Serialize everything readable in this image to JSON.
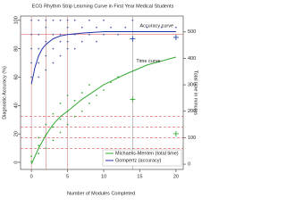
{
  "chart_data": {
    "type": "scatter",
    "title": "ECG Rhythm Strip Learning Curve in First Year Medical Students",
    "x_label": "Number of Modules Completed",
    "y_label": "Diagnostic Accuracy (%)",
    "y2_label": "Total time in minutes",
    "xlim": [
      -1.5,
      21
    ],
    "xticks": [
      0,
      5,
      10,
      15,
      20
    ],
    "ylim": [
      -5,
      103
    ],
    "yticks": [
      0,
      20,
      40,
      60,
      80,
      100
    ],
    "y2lim": [
      -20,
      560
    ],
    "y2ticks": [
      0,
      100,
      200,
      300,
      400,
      500
    ],
    "legend": "bottom-right",
    "hlines": [
      {
        "value": 90,
        "axis": "y",
        "color": "#e07070",
        "dash": false
      },
      {
        "value": 180,
        "axis": "y2",
        "color": "#e05050",
        "dash": true
      },
      {
        "value": 140,
        "axis": "y2",
        "color": "#e05050",
        "dash": true
      },
      {
        "value": 100,
        "axis": "y2",
        "color": "#e05050",
        "dash": true
      },
      {
        "value": 60,
        "axis": "y2",
        "color": "#e05050",
        "dash": true
      }
    ],
    "vlines": [
      {
        "value": 0,
        "color": "#d08080"
      },
      {
        "value": 2,
        "color": "#d08080"
      },
      {
        "value": 5,
        "color": "#d08080"
      },
      {
        "value": 14,
        "color": "#999999"
      }
    ],
    "series": [
      {
        "color": "#5566aa",
        "marker": "dot",
        "axis": "y",
        "x": [
          0,
          0,
          0,
          0,
          0,
          1,
          1,
          1,
          1,
          1,
          2,
          2,
          2,
          2,
          2,
          3,
          3,
          3,
          3,
          4,
          4,
          4,
          4,
          5,
          5,
          5,
          5,
          6,
          6,
          6,
          7,
          7,
          8,
          8,
          9,
          9,
          10,
          10,
          11,
          12,
          13,
          14,
          16,
          18,
          20
        ],
        "values": [
          100,
          90,
          80,
          70,
          60,
          100,
          90,
          80,
          70,
          60,
          100,
          95,
          85,
          75,
          65,
          100,
          90,
          80,
          70,
          100,
          90,
          85,
          75,
          100,
          95,
          85,
          80,
          100,
          90,
          80,
          95,
          85,
          100,
          90,
          95,
          85,
          100,
          90,
          95,
          90,
          95,
          100,
          95,
          95,
          95
        ]
      },
      {
        "color": "#44aa44",
        "marker": "dot",
        "axis": "y2",
        "x": [
          0,
          0,
          1,
          1,
          1,
          2,
          2,
          2,
          3,
          3,
          3,
          4,
          4,
          4,
          5,
          5,
          5,
          6,
          6,
          7,
          7,
          8,
          8,
          9,
          10,
          11,
          12
        ],
        "values": [
          10,
          30,
          40,
          70,
          100,
          60,
          110,
          150,
          90,
          140,
          190,
          120,
          170,
          230,
          150,
          200,
          260,
          180,
          240,
          200,
          270,
          230,
          300,
          260,
          280,
          310,
          330
        ]
      },
      {
        "color": "#2244aa",
        "marker": "plus",
        "axis": "y",
        "x": [
          14,
          20
        ],
        "values": [
          87,
          88
        ]
      },
      {
        "color": "#33aa33",
        "marker": "plus",
        "axis": "y2",
        "x": [
          14,
          20
        ],
        "values": [
          245,
          115
        ]
      },
      {
        "name": "Michaelis-Menten (total time)",
        "color": "#33aa33",
        "marker": "line",
        "axis": "y2",
        "x": [
          0,
          1,
          2,
          3,
          4,
          5,
          7,
          10,
          13,
          16,
          20
        ],
        "values": [
          0,
          60,
          110,
          150,
          180,
          200,
          245,
          300,
          340,
          375,
          405
        ]
      },
      {
        "name": "Gompertz (accuracy)",
        "color": "#2233aa",
        "marker": "line",
        "axis": "y",
        "x": [
          0,
          0.5,
          1,
          1.5,
          2,
          3,
          4,
          5,
          7,
          10,
          15,
          20
        ],
        "values": [
          55,
          67,
          75,
          80,
          83,
          87,
          89,
          90,
          91,
          92,
          92,
          92
        ]
      }
    ],
    "annotations": [
      {
        "text": "Accuracy curve",
        "x": 15,
        "y": 96,
        "axis": "y"
      },
      {
        "text": "Time curve",
        "x": 14.5,
        "y": 390,
        "axis": "y2"
      }
    ]
  }
}
